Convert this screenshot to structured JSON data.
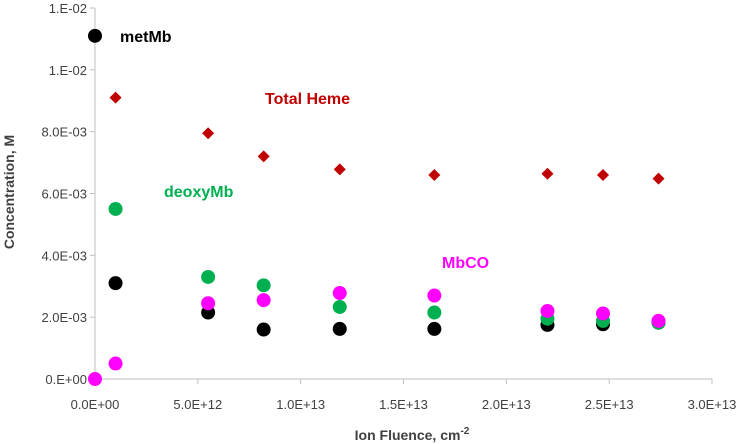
{
  "chart_data": {
    "type": "scatter",
    "title": "",
    "xlabel": "Ion Fluence, cm",
    "xlabel_superscript": "-2",
    "ylabel": "Concentration, M",
    "xlim": [
      0,
      30000000000000.0
    ],
    "ylim": [
      0,
      0.012
    ],
    "x_tick_values": [
      0,
      5000000000000.0,
      10000000000000.0,
      15000000000000.0,
      20000000000000.0,
      25000000000000.0,
      30000000000000.0
    ],
    "x_tick_labels": [
      "0.0E+00",
      "5.0E+12",
      "1.0E+13",
      "1.5E+13",
      "2.0E+13",
      "2.5E+13",
      "3.0E+13"
    ],
    "y_tick_values": [
      0,
      0.002,
      0.004,
      0.006,
      0.008,
      0.01,
      0.012
    ],
    "y_tick_labels": [
      "0.E+00",
      "2.0E-03",
      "4.0E-03",
      "6.0E-03",
      "8.0E-03",
      "1.E-02",
      "1.E-02"
    ],
    "grid": false,
    "legend": "none",
    "series": [
      {
        "name": "metMb",
        "color": "#000000",
        "marker": "circle",
        "x": [
          0,
          1000000000000.0,
          5500000000000.0,
          8200000000000.0,
          11900000000000.0,
          16500000000000.0,
          22000000000000.0,
          24700000000000.0,
          27400000000000.0
        ],
        "y": [
          0.0111,
          0.0031,
          0.00215,
          0.0016,
          0.00162,
          0.00162,
          0.00175,
          0.00177,
          0.00182
        ]
      },
      {
        "name": "Total Heme",
        "color": "#C00000",
        "marker": "diamond",
        "x": [
          1000000000000.0,
          5500000000000.0,
          8200000000000.0,
          11900000000000.0,
          16500000000000.0,
          22000000000000.0,
          24700000000000.0,
          27400000000000.0
        ],
        "y": [
          0.0091,
          0.00795,
          0.0072,
          0.00678,
          0.0066,
          0.00664,
          0.0066,
          0.00648
        ]
      },
      {
        "name": "deoxyMb",
        "color": "#00B050",
        "marker": "circle",
        "x": [
          1000000000000.0,
          5500000000000.0,
          8200000000000.0,
          11900000000000.0,
          16500000000000.0,
          22000000000000.0,
          24700000000000.0,
          27400000000000.0
        ],
        "y": [
          0.0055,
          0.0033,
          0.00303,
          0.00233,
          0.00215,
          0.00195,
          0.00188,
          0.00182
        ]
      },
      {
        "name": "MbCO",
        "color": "#FF00FF",
        "marker": "circle",
        "x": [
          0,
          1000000000000.0,
          5500000000000.0,
          8200000000000.0,
          11900000000000.0,
          16500000000000.0,
          22000000000000.0,
          24700000000000.0,
          27400000000000.0
        ],
        "y": [
          0,
          0.0005,
          0.00245,
          0.00255,
          0.00278,
          0.0027,
          0.0022,
          0.00212,
          0.00188
        ]
      }
    ]
  }
}
